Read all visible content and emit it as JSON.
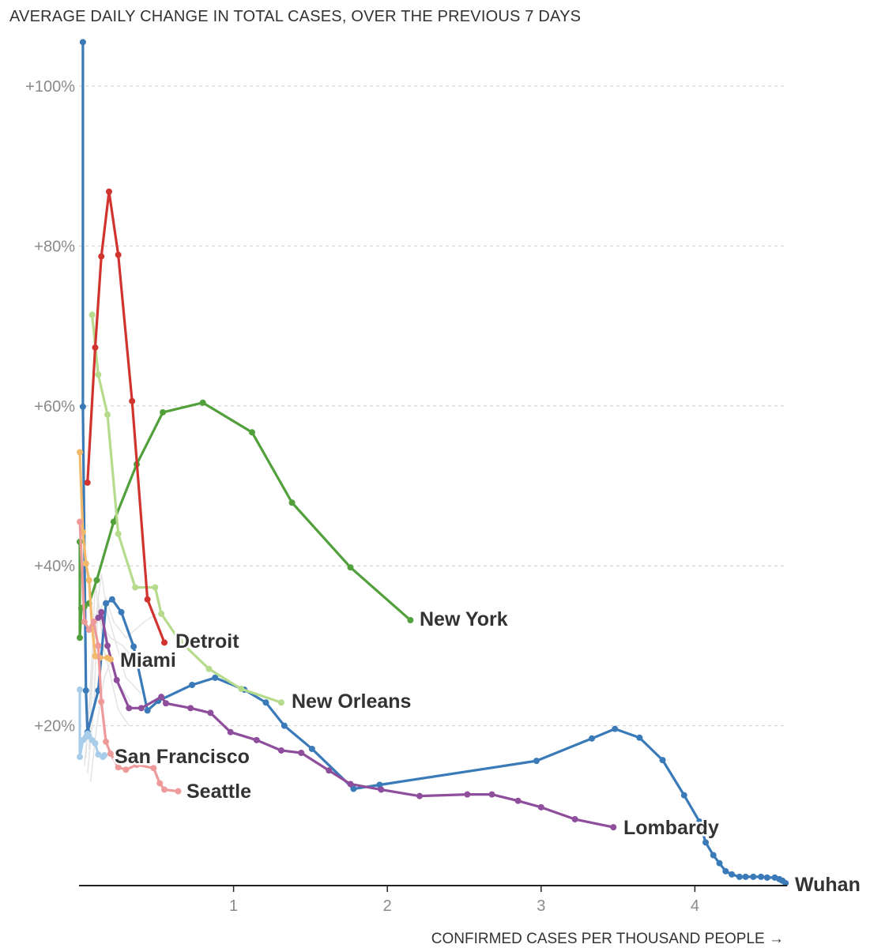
{
  "chart_data": {
    "type": "line",
    "title": "AVERAGE DAILY CHANGE IN TOTAL CASES, OVER THE PREVIOUS 7 DAYS",
    "xlabel": "CONFIRMED CASES PER THOUSAND PEOPLE →",
    "ylabel": "",
    "xlim": [
      0,
      4.6
    ],
    "ylim": [
      0,
      105
    ],
    "x_ticks": [
      {
        "value": 1,
        "label": "1"
      },
      {
        "value": 2,
        "label": "2"
      },
      {
        "value": 3,
        "label": "3"
      },
      {
        "value": 4,
        "label": "4"
      }
    ],
    "y_ticks": [
      {
        "value": 20,
        "label": "+20%"
      },
      {
        "value": 40,
        "label": "+40%"
      },
      {
        "value": 60,
        "label": "+60%"
      },
      {
        "value": 80,
        "label": "+80%"
      },
      {
        "value": 100,
        "label": "+100%"
      }
    ],
    "grid": true,
    "series": [
      {
        "name": "Wuhan",
        "color": "#3a7ab8",
        "label_side": "right",
        "points": [
          [
            0.02,
            105.5
          ],
          [
            0.02,
            59.9
          ],
          [
            0.04,
            24.4
          ],
          [
            0.05,
            19.2
          ],
          [
            0.12,
            24.4
          ],
          [
            0.17,
            35.3
          ],
          [
            0.21,
            35.8
          ],
          [
            0.27,
            34.2
          ],
          [
            0.35,
            29.9
          ],
          [
            0.44,
            21.9
          ],
          [
            0.51,
            23.1
          ],
          [
            0.73,
            25.1
          ],
          [
            0.88,
            26.0
          ],
          [
            1.07,
            24.5
          ],
          [
            1.21,
            22.9
          ],
          [
            1.33,
            20.0
          ],
          [
            1.51,
            17.1
          ],
          [
            1.78,
            12.1
          ],
          [
            1.95,
            12.6
          ],
          [
            2.97,
            15.6
          ],
          [
            3.33,
            18.4
          ],
          [
            3.48,
            19.6
          ],
          [
            3.64,
            18.5
          ],
          [
            3.79,
            15.7
          ],
          [
            3.93,
            11.3
          ],
          [
            4.03,
            8.0
          ],
          [
            4.07,
            5.4
          ],
          [
            4.12,
            3.8
          ],
          [
            4.16,
            2.8
          ],
          [
            4.2,
            1.8
          ],
          [
            4.24,
            1.4
          ],
          [
            4.29,
            1.1
          ],
          [
            4.33,
            1.1
          ],
          [
            4.38,
            1.1
          ],
          [
            4.43,
            1.1
          ],
          [
            4.47,
            1.0
          ],
          [
            4.52,
            1.0
          ],
          [
            4.55,
            0.8
          ],
          [
            4.57,
            0.6
          ],
          [
            4.59,
            0.3
          ]
        ]
      },
      {
        "name": "Lombardy",
        "color": "#8e4e9c",
        "label_side": "right",
        "points": [
          [
            0.12,
            33.5
          ],
          [
            0.14,
            34.2
          ],
          [
            0.18,
            30.0
          ],
          [
            0.24,
            25.7
          ],
          [
            0.32,
            22.2
          ],
          [
            0.4,
            22.2
          ],
          [
            0.53,
            23.6
          ],
          [
            0.56,
            22.8
          ],
          [
            0.72,
            22.2
          ],
          [
            0.85,
            21.6
          ],
          [
            0.98,
            19.2
          ],
          [
            1.15,
            18.2
          ],
          [
            1.31,
            16.9
          ],
          [
            1.44,
            16.6
          ],
          [
            1.62,
            14.4
          ],
          [
            1.76,
            12.7
          ],
          [
            1.96,
            12.0
          ],
          [
            2.21,
            11.2
          ],
          [
            2.52,
            11.4
          ],
          [
            2.68,
            11.4
          ],
          [
            2.85,
            10.6
          ],
          [
            3.0,
            9.8
          ],
          [
            3.22,
            8.3
          ],
          [
            3.47,
            7.3
          ]
        ]
      },
      {
        "name": "New York",
        "color": "#52a03c",
        "label_side": "right",
        "points": [
          [
            0.0,
            43.0
          ],
          [
            0.0,
            31.0
          ],
          [
            0.01,
            34.7
          ],
          [
            0.03,
            34.9
          ],
          [
            0.06,
            35.3
          ],
          [
            0.11,
            38.2
          ],
          [
            0.22,
            45.5
          ],
          [
            0.37,
            52.7
          ],
          [
            0.54,
            59.2
          ],
          [
            0.8,
            60.4
          ],
          [
            1.12,
            56.7
          ],
          [
            1.38,
            47.9
          ],
          [
            1.76,
            39.8
          ],
          [
            2.15,
            33.2
          ]
        ]
      },
      {
        "name": "New Orleans",
        "color": "#b6db8d",
        "label_side": "right",
        "points": [
          [
            0.08,
            71.4
          ],
          [
            0.12,
            63.9
          ],
          [
            0.18,
            58.9
          ],
          [
            0.25,
            44.0
          ],
          [
            0.36,
            37.3
          ],
          [
            0.49,
            37.3
          ],
          [
            0.53,
            34.0
          ],
          [
            0.65,
            30.6
          ],
          [
            0.84,
            27.1
          ],
          [
            1.05,
            24.6
          ],
          [
            1.31,
            22.9
          ]
        ]
      },
      {
        "name": "Detroit",
        "color": "#d1342f",
        "label_side": "right",
        "points": [
          [
            0.05,
            50.4
          ],
          [
            0.1,
            67.3
          ],
          [
            0.14,
            78.7
          ],
          [
            0.19,
            86.8
          ],
          [
            0.25,
            78.9
          ],
          [
            0.34,
            60.6
          ],
          [
            0.44,
            35.8
          ],
          [
            0.55,
            30.4
          ]
        ]
      },
      {
        "name": "Miami",
        "color": "#f2b96a",
        "label_side": "right",
        "points": [
          [
            0.0,
            54.2
          ],
          [
            0.02,
            44.2
          ],
          [
            0.04,
            40.3
          ],
          [
            0.06,
            38.2
          ],
          [
            0.08,
            32.4
          ],
          [
            0.1,
            28.7
          ],
          [
            0.13,
            28.5
          ],
          [
            0.18,
            28.5
          ],
          [
            0.2,
            28.3
          ]
        ]
      },
      {
        "name": "San Francisco",
        "color": "#a9cde8",
        "label_side": "right",
        "points": [
          [
            0.0,
            24.5
          ],
          [
            0.0,
            16.1
          ],
          [
            0.02,
            18.2
          ],
          [
            0.04,
            18.6
          ],
          [
            0.05,
            19.0
          ],
          [
            0.06,
            18.7
          ],
          [
            0.08,
            18.2
          ],
          [
            0.1,
            17.8
          ],
          [
            0.12,
            16.4
          ],
          [
            0.15,
            16.1
          ],
          [
            0.16,
            16.3
          ]
        ]
      },
      {
        "name": "Seattle",
        "color": "#ef9a9a",
        "label_side": "right",
        "points": [
          [
            0.0,
            45.5
          ],
          [
            0.03,
            33.0
          ],
          [
            0.06,
            32.0
          ],
          [
            0.09,
            33.0
          ],
          [
            0.12,
            30.0
          ],
          [
            0.14,
            23.0
          ],
          [
            0.17,
            18.0
          ],
          [
            0.2,
            16.5
          ],
          [
            0.25,
            14.8
          ],
          [
            0.3,
            14.5
          ],
          [
            0.37,
            15.1
          ],
          [
            0.48,
            14.7
          ],
          [
            0.52,
            12.8
          ],
          [
            0.55,
            12.0
          ],
          [
            0.64,
            11.8
          ]
        ]
      }
    ]
  }
}
